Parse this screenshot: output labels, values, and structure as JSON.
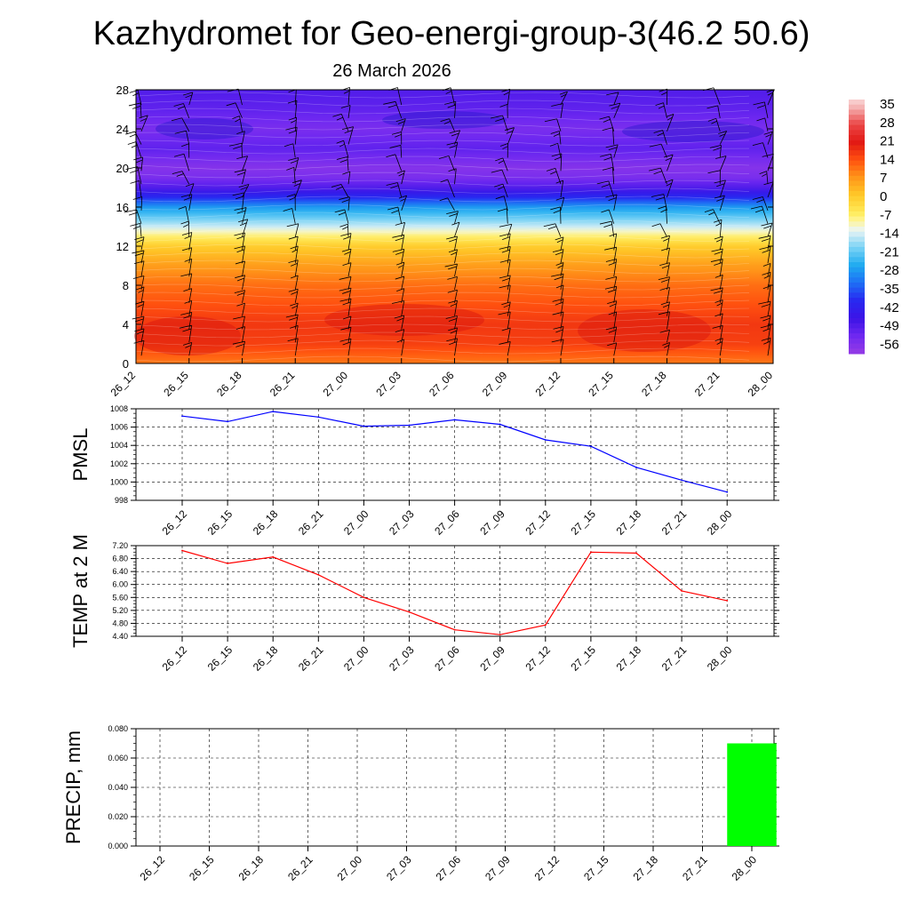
{
  "header": {
    "title": "Kazhydromet for Geo-energi-group-3(46.2 50.6)",
    "date": "26 March 2026"
  },
  "chart_data": [
    {
      "type": "heatmap",
      "name": "height-time cross section",
      "x": [
        "26_12",
        "26_15",
        "26_18",
        "26_21",
        "27_00",
        "27_03",
        "27_06",
        "27_09",
        "27_12",
        "27_15",
        "27_18",
        "27_21",
        "28_00"
      ],
      "y_ticks": [
        0,
        4,
        8,
        12,
        16,
        20,
        24,
        28
      ],
      "ylim": [
        0,
        28
      ],
      "colorbar": {
        "labels": [
          "35",
          "28",
          "21",
          "14",
          "7",
          "0",
          "-7",
          "-14",
          "-21",
          "-28",
          "-35",
          "-42",
          "-49",
          "-56"
        ],
        "range": [
          -63,
          38
        ]
      },
      "profile": {
        "levels": [
          0,
          2,
          4,
          6,
          8,
          10,
          12,
          13,
          14,
          16,
          17,
          18,
          19,
          20,
          22,
          24,
          26,
          28
        ],
        "values": [
          10,
          16,
          17,
          14,
          11,
          6,
          -1,
          -8,
          -16,
          -30,
          -42,
          -52,
          -58,
          -60,
          -54,
          -58,
          -54,
          -52
        ]
      },
      "wind_barbs": "shown"
    },
    {
      "type": "line",
      "ylabel": "PMSL",
      "x": [
        "26_12",
        "26_15",
        "26_18",
        "26_21",
        "27_00",
        "27_03",
        "27_06",
        "27_09",
        "27_12",
        "27_15",
        "27_18",
        "27_21",
        "28_00"
      ],
      "values": [
        1007.2,
        1006.6,
        1007.7,
        1007.1,
        1006.1,
        1006.2,
        1006.8,
        1006.3,
        1004.6,
        1003.9,
        1001.6,
        1000.2,
        998.9
      ],
      "ylim": [
        998,
        1008
      ],
      "y_ticks": [
        "998",
        "1000",
        "1002",
        "1004",
        "1006",
        "1008"
      ],
      "color": "#0000ff"
    },
    {
      "type": "line",
      "ylabel": "TEMP at 2 M",
      "x": [
        "26_12",
        "26_15",
        "26_18",
        "26_21",
        "27_00",
        "27_03",
        "27_06",
        "27_09",
        "27_12",
        "27_15",
        "27_18",
        "27_21",
        "28_00"
      ],
      "values": [
        7.05,
        6.65,
        6.85,
        6.3,
        5.6,
        5.15,
        4.6,
        4.45,
        4.75,
        7.0,
        6.97,
        5.8,
        5.5
      ],
      "ylim": [
        4.4,
        7.2
      ],
      "y_ticks": [
        "4.40",
        "4.80",
        "5.20",
        "5.60",
        "6.00",
        "6.40",
        "6.80",
        "7.20"
      ],
      "color": "#ff0000"
    },
    {
      "type": "bar",
      "ylabel": "PRECIP, mm",
      "x": [
        "26_12",
        "26_15",
        "26_18",
        "26_21",
        "27_00",
        "27_03",
        "27_06",
        "27_09",
        "27_12",
        "27_15",
        "27_18",
        "27_21",
        "28_00"
      ],
      "values": [
        0,
        0,
        0,
        0,
        0,
        0,
        0,
        0,
        0,
        0,
        0,
        0,
        0.07
      ],
      "ylim": [
        0,
        0.08
      ],
      "y_ticks": [
        "0.000",
        "0.020",
        "0.040",
        "0.060",
        "0.080"
      ],
      "color": "#00ff00"
    }
  ]
}
